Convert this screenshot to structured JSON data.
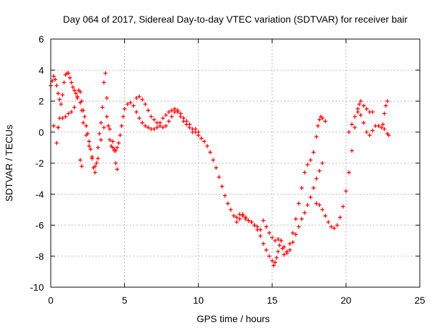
{
  "chart_data": {
    "type": "scatter",
    "title": "Day 064 of 2017, Sidereal Day-to-day VTEC variation (SDTVAR) for receiver bair",
    "xlabel": "GPS time / hours",
    "ylabel": "SDTVAR / TECUs",
    "xlim": [
      0,
      25
    ],
    "ylim": [
      -10,
      6
    ],
    "x_ticks": [
      "0",
      "5",
      "10",
      "15",
      "20",
      "25"
    ],
    "y_ticks": [
      "-10",
      "-8",
      "-6",
      "-4",
      "-2",
      "0",
      "2",
      "4",
      "6"
    ],
    "grid": true,
    "marker": "+",
    "color": "#ff0000",
    "series": [
      {
        "points": [
          [
            0.0,
            3.0
          ],
          [
            0.1,
            3.3
          ],
          [
            0.2,
            3.6
          ],
          [
            0.3,
            3.4
          ],
          [
            0.4,
            3.0
          ],
          [
            0.5,
            2.5
          ],
          [
            0.6,
            2.1
          ],
          [
            0.7,
            1.8
          ],
          [
            0.8,
            2.4
          ],
          [
            0.9,
            3.2
          ],
          [
            1.0,
            3.7
          ],
          [
            1.1,
            3.8
          ],
          [
            1.2,
            3.8
          ],
          [
            1.3,
            3.5
          ],
          [
            1.4,
            3.2
          ],
          [
            1.5,
            2.9
          ],
          [
            1.6,
            2.7
          ],
          [
            1.7,
            2.5
          ],
          [
            1.8,
            2.3
          ],
          [
            1.9,
            2.7
          ],
          [
            2.0,
            2.6
          ],
          [
            2.1,
            2.0
          ],
          [
            2.2,
            1.4
          ],
          [
            2.3,
            1.0
          ],
          [
            2.4,
            0.4
          ],
          [
            2.5,
            -0.1
          ],
          [
            2.6,
            -0.6
          ],
          [
            2.7,
            -1.1
          ],
          [
            2.8,
            -1.7
          ],
          [
            2.9,
            -2.3
          ],
          [
            3.0,
            -2.6
          ],
          [
            3.1,
            -2.0
          ],
          [
            3.2,
            -1.0
          ],
          [
            3.3,
            -0.1
          ],
          [
            3.4,
            0.6
          ],
          [
            3.5,
            1.6
          ],
          [
            3.6,
            3.2
          ],
          [
            3.7,
            3.8
          ],
          [
            3.8,
            2.2
          ],
          [
            3.9,
            0.4
          ],
          [
            4.0,
            -0.5
          ],
          [
            4.1,
            -0.9
          ],
          [
            4.2,
            -1.0
          ],
          [
            4.3,
            -1.1
          ],
          [
            4.4,
            -1.2
          ],
          [
            4.5,
            -1.0
          ],
          [
            4.6,
            -0.7
          ],
          [
            4.7,
            -0.2
          ],
          [
            4.8,
            0.4
          ],
          [
            4.9,
            1.0
          ],
          [
            5.0,
            1.5
          ],
          [
            5.2,
            1.8
          ],
          [
            5.4,
            1.9
          ],
          [
            5.6,
            1.7
          ],
          [
            5.8,
            1.3
          ],
          [
            6.0,
            0.9
          ],
          [
            6.2,
            0.6
          ],
          [
            6.4,
            0.4
          ],
          [
            6.6,
            0.3
          ],
          [
            6.8,
            0.2
          ],
          [
            7.0,
            0.2
          ],
          [
            7.2,
            0.3
          ],
          [
            7.4,
            0.6
          ],
          [
            7.6,
            0.9
          ],
          [
            7.8,
            1.1
          ],
          [
            8.0,
            1.3
          ],
          [
            8.2,
            1.4
          ],
          [
            8.4,
            1.5
          ],
          [
            8.6,
            1.4
          ],
          [
            8.8,
            1.2
          ],
          [
            9.0,
            0.9
          ],
          [
            9.2,
            0.7
          ],
          [
            9.4,
            0.5
          ],
          [
            9.6,
            0.2
          ],
          [
            9.8,
            0.0
          ],
          [
            10.0,
            -0.2
          ],
          [
            10.2,
            -0.4
          ],
          [
            10.4,
            -0.6
          ],
          [
            10.6,
            -0.9
          ],
          [
            10.8,
            -1.3
          ],
          [
            11.0,
            -1.8
          ],
          [
            11.2,
            -2.3
          ],
          [
            11.4,
            -2.9
          ],
          [
            11.6,
            -3.5
          ],
          [
            11.8,
            -4.1
          ],
          [
            12.0,
            -4.6
          ],
          [
            12.2,
            -5.0
          ],
          [
            12.4,
            -5.4
          ],
          [
            12.6,
            -5.8
          ],
          [
            12.8,
            -5.6
          ],
          [
            13.0,
            -5.3
          ],
          [
            13.2,
            -5.5
          ],
          [
            13.4,
            -5.7
          ],
          [
            13.6,
            -5.8
          ],
          [
            13.8,
            -6.0
          ],
          [
            14.0,
            -6.3
          ],
          [
            14.2,
            -6.7
          ],
          [
            14.4,
            -7.2
          ],
          [
            14.6,
            -7.6
          ],
          [
            14.8,
            -8.0
          ],
          [
            15.0,
            -8.3
          ],
          [
            15.1,
            -8.6
          ],
          [
            15.2,
            -8.4
          ],
          [
            15.3,
            -8.1
          ],
          [
            15.4,
            -7.7
          ],
          [
            15.5,
            -7.3
          ],
          [
            15.6,
            -7.0
          ],
          [
            15.7,
            -7.5
          ],
          [
            15.8,
            -7.9
          ],
          [
            16.0,
            -7.7
          ],
          [
            16.2,
            -7.2
          ],
          [
            16.4,
            -6.5
          ],
          [
            16.6,
            -5.6
          ],
          [
            16.8,
            -4.6
          ],
          [
            17.0,
            -3.6
          ],
          [
            17.2,
            -2.6
          ],
          [
            17.4,
            -2.1
          ],
          [
            17.6,
            -1.8
          ],
          [
            17.8,
            -1.3
          ],
          [
            18.0,
            -0.3
          ],
          [
            18.1,
            0.4
          ],
          [
            18.2,
            0.8
          ],
          [
            18.3,
            1.0
          ],
          [
            18.4,
            0.9
          ],
          [
            18.6,
            0.7
          ],
          [
            0.2,
            0.4
          ],
          [
            0.4,
            -0.7
          ],
          [
            0.5,
            0.3
          ],
          [
            0.6,
            0.9
          ],
          [
            0.8,
            0.9
          ],
          [
            1.0,
            1.0
          ],
          [
            1.2,
            1.2
          ],
          [
            1.4,
            1.3
          ],
          [
            1.6,
            1.6
          ],
          [
            1.8,
            2.2
          ],
          [
            2.0,
            1.9
          ],
          [
            2.1,
            1.4
          ],
          [
            2.2,
            0.6
          ],
          [
            2.4,
            -0.2
          ],
          [
            2.6,
            -0.9
          ],
          [
            2.8,
            -1.6
          ],
          [
            3.0,
            -2.2
          ],
          [
            3.2,
            -1.7
          ],
          [
            3.4,
            -0.5
          ],
          [
            3.6,
            0.3
          ],
          [
            3.8,
            1.0
          ],
          [
            4.0,
            0.2
          ],
          [
            4.2,
            -0.6
          ],
          [
            4.3,
            -1.2
          ],
          [
            4.4,
            -2.0
          ],
          [
            4.5,
            -2.4
          ],
          [
            2.0,
            -1.8
          ],
          [
            2.1,
            -2.2
          ],
          [
            0.5,
            0.3
          ],
          [
            5.8,
            2.2
          ],
          [
            6.0,
            2.3
          ],
          [
            6.2,
            2.1
          ],
          [
            6.4,
            1.8
          ],
          [
            6.6,
            1.4
          ],
          [
            6.8,
            1.0
          ],
          [
            7.0,
            0.8
          ],
          [
            7.2,
            0.6
          ],
          [
            7.4,
            0.4
          ],
          [
            7.6,
            0.3
          ],
          [
            7.8,
            0.4
          ],
          [
            8.0,
            0.7
          ],
          [
            8.2,
            1.0
          ],
          [
            8.4,
            1.3
          ],
          [
            8.6,
            1.3
          ],
          [
            8.8,
            1.0
          ],
          [
            9.0,
            0.7
          ],
          [
            9.2,
            0.5
          ],
          [
            9.4,
            0.3
          ],
          [
            9.6,
            0.0
          ],
          [
            9.8,
            0.2
          ],
          [
            10.0,
            0.0
          ],
          [
            12.6,
            -5.5
          ],
          [
            12.8,
            -5.3
          ],
          [
            13.0,
            -5.4
          ],
          [
            13.2,
            -5.6
          ],
          [
            13.4,
            -5.7
          ],
          [
            13.6,
            -5.8
          ],
          [
            13.8,
            -6.0
          ],
          [
            14.0,
            -6.1
          ],
          [
            14.2,
            -6.3
          ],
          [
            14.4,
            -5.7
          ],
          [
            14.6,
            -6.1
          ],
          [
            14.8,
            -6.5
          ],
          [
            15.0,
            -6.8
          ],
          [
            15.2,
            -7.0
          ],
          [
            15.4,
            -6.9
          ],
          [
            15.6,
            -7.0
          ],
          [
            15.8,
            -7.4
          ],
          [
            16.0,
            -7.8
          ],
          [
            16.2,
            -7.6
          ],
          [
            16.4,
            -7.1
          ],
          [
            16.6,
            -6.6
          ],
          [
            16.8,
            -6.1
          ],
          [
            17.0,
            -5.6
          ],
          [
            17.2,
            -5.2
          ],
          [
            17.4,
            -4.7
          ],
          [
            17.6,
            -4.2
          ],
          [
            17.8,
            -3.6
          ],
          [
            18.0,
            -3.0
          ],
          [
            18.2,
            -2.5
          ],
          [
            18.4,
            -2.0
          ],
          [
            18.0,
            -4.6
          ],
          [
            18.2,
            -4.7
          ],
          [
            18.4,
            -5.0
          ],
          [
            18.6,
            -5.4
          ],
          [
            18.8,
            -5.8
          ],
          [
            19.0,
            -6.1
          ],
          [
            19.2,
            -6.2
          ],
          [
            19.4,
            -6.0
          ],
          [
            19.6,
            -5.5
          ],
          [
            19.8,
            -4.8
          ],
          [
            20.0,
            -3.8
          ],
          [
            20.2,
            -2.6
          ],
          [
            20.4,
            -1.2
          ],
          [
            20.6,
            0.3
          ],
          [
            20.8,
            1.3
          ],
          [
            20.9,
            1.8
          ],
          [
            21.0,
            2.0
          ],
          [
            21.2,
            1.7
          ],
          [
            21.4,
            1.5
          ],
          [
            21.6,
            1.3
          ],
          [
            21.8,
            1.3
          ],
          [
            20.2,
            0.0
          ],
          [
            20.4,
            0.5
          ],
          [
            20.6,
            1.0
          ],
          [
            20.8,
            1.5
          ],
          [
            21.0,
            1.1
          ],
          [
            21.2,
            0.6
          ],
          [
            21.4,
            0.0
          ],
          [
            21.6,
            -0.2
          ],
          [
            21.8,
            0.1
          ],
          [
            22.0,
            0.4
          ],
          [
            22.2,
            0.4
          ],
          [
            22.4,
            0.3
          ],
          [
            22.5,
            0.5
          ],
          [
            22.6,
            1.2
          ],
          [
            22.7,
            1.7
          ],
          [
            22.8,
            2.0
          ],
          [
            22.6,
            0.2
          ],
          [
            22.8,
            -0.1
          ],
          [
            22.9,
            -0.2
          ]
        ]
      }
    ]
  }
}
